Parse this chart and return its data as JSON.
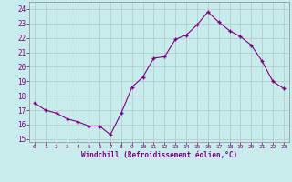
{
  "x": [
    0,
    1,
    2,
    3,
    4,
    5,
    6,
    7,
    8,
    9,
    10,
    11,
    12,
    13,
    14,
    15,
    16,
    17,
    18,
    19,
    20,
    21,
    22,
    23
  ],
  "y": [
    17.5,
    17.0,
    16.8,
    16.4,
    16.2,
    15.9,
    15.9,
    15.3,
    16.8,
    18.6,
    19.3,
    20.6,
    20.7,
    21.9,
    22.2,
    22.9,
    23.8,
    23.1,
    22.5,
    22.1,
    21.5,
    20.4,
    19.0,
    18.5
  ],
  "line_color": "#800080",
  "marker_color": "#800080",
  "bg_color": "#c8ecec",
  "grid_color": "#b0c8c8",
  "xlabel": "Windchill (Refroidissement éolien,°C)",
  "xlabel_color": "#800080",
  "yticks": [
    15,
    16,
    17,
    18,
    19,
    20,
    21,
    22,
    23,
    24
  ],
  "xticks": [
    0,
    1,
    2,
    3,
    4,
    5,
    6,
    7,
    8,
    9,
    10,
    11,
    12,
    13,
    14,
    15,
    16,
    17,
    18,
    19,
    20,
    21,
    22,
    23
  ],
  "ylim": [
    14.8,
    24.5
  ],
  "xlim": [
    -0.5,
    23.5
  ]
}
